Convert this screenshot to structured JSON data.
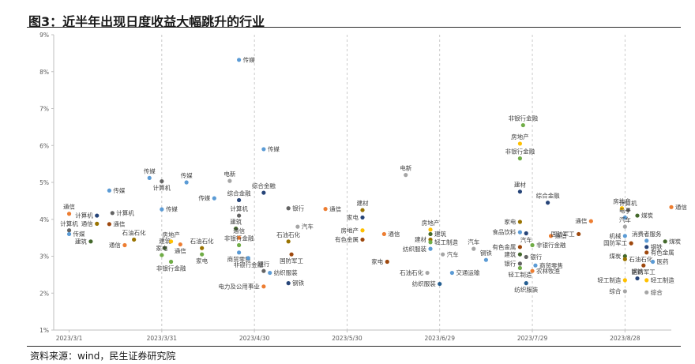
{
  "title": "图3：近半年出现日度收益大幅跳升的行业",
  "source": "资料来源：wind，民生证券研究院",
  "colors": {
    "blue": "#4472c4",
    "orange": "#ed7d31",
    "gray": "#a5a5a5",
    "yellow": "#ffc000",
    "lightblue": "#5b9bd5",
    "green": "#70ad47",
    "navy": "#264478",
    "brown": "#9e480e",
    "darkgray": "#636363",
    "olive": "#997300",
    "steel": "#255e91",
    "darkgreen": "#43682b"
  },
  "chart_data": {
    "type": "scatter",
    "title": "",
    "xlabel": "",
    "ylabel": "",
    "xlim": [
      "2023-02-24",
      "2023-09-12"
    ],
    "ylim": [
      1,
      9
    ],
    "x_ticks": [
      "2023/3/1",
      "2023/3/31",
      "2023/4/30",
      "2023/5/30",
      "2023/6/29",
      "2023/7/29",
      "2023/8/28"
    ],
    "x_tick_dates": [
      "2023-03-01",
      "2023-03-31",
      "2023-04-30",
      "2023-05-30",
      "2023-06-29",
      "2023-07-29",
      "2023-08-28"
    ],
    "y_ticks": [
      "1%",
      "2%",
      "3%",
      "4%",
      "5%",
      "6%",
      "7%",
      "8%",
      "9%"
    ],
    "y_tick_values": [
      1,
      2,
      3,
      4,
      5,
      6,
      7,
      8,
      9
    ],
    "grid": {
      "vertical_dashed": true,
      "horizontal": false
    },
    "points": [
      {
        "date": "2023-03-01",
        "value": 4.15,
        "label": "通信",
        "color": "orange",
        "lp": "top"
      },
      {
        "date": "2023-03-01",
        "value": 3.7,
        "label": "计算机",
        "color": "darkgray",
        "lp": "top"
      },
      {
        "date": "2023-03-01",
        "value": 3.6,
        "label": "传媒",
        "color": "lightblue",
        "lp": "right"
      },
      {
        "date": "2023-03-10",
        "value": 4.1,
        "label": "计算机",
        "color": "navy",
        "lp": "left"
      },
      {
        "date": "2023-03-10",
        "value": 3.88,
        "label": "通信",
        "color": "olive",
        "lp": "left"
      },
      {
        "date": "2023-03-08",
        "value": 3.4,
        "label": "建筑",
        "color": "darkgreen",
        "lp": "left"
      },
      {
        "date": "2023-03-14",
        "value": 3.87,
        "label": "通信",
        "color": "brown",
        "lp": "right"
      },
      {
        "date": "2023-03-14",
        "value": 4.78,
        "label": "传媒",
        "color": "lightblue",
        "lp": "right"
      },
      {
        "date": "2023-03-15",
        "value": 4.17,
        "label": "计算机",
        "color": "darkgray",
        "lp": "right"
      },
      {
        "date": "2023-03-19",
        "value": 3.3,
        "label": "通信",
        "color": "orange",
        "lp": "left"
      },
      {
        "date": "2023-03-22",
        "value": 3.45,
        "label": "石油石化",
        "color": "olive",
        "lp": "top"
      },
      {
        "date": "2023-03-27",
        "value": 5.12,
        "label": "传媒",
        "color": "lightblue",
        "lp": "top"
      },
      {
        "date": "2023-03-31",
        "value": 5.03,
        "label": "计算机",
        "color": "darkgray",
        "lp": "bottom"
      },
      {
        "date": "2023-03-31",
        "value": 4.27,
        "label": "传媒",
        "color": "lightblue",
        "lp": "right"
      },
      {
        "date": "2023-04-01",
        "value": 3.22,
        "label": "建筑",
        "color": "darkgreen",
        "lp": "top"
      },
      {
        "date": "2023-03-31",
        "value": 3.03,
        "label": "家电",
        "color": "green",
        "lp": "top"
      },
      {
        "date": "2023-04-03",
        "value": 3.4,
        "label": "房地产",
        "color": "yellow",
        "lp": "top"
      },
      {
        "date": "2023-04-03",
        "value": 2.85,
        "label": "非银行金融",
        "color": "green",
        "lp": "bottom"
      },
      {
        "date": "2023-04-06",
        "value": 3.32,
        "label": "通信",
        "color": "orange",
        "lp": "bottom"
      },
      {
        "date": "2023-04-08",
        "value": 5.0,
        "label": "传媒",
        "color": "lightblue",
        "lp": "top"
      },
      {
        "date": "2023-04-13",
        "value": 3.22,
        "label": "石油石化",
        "color": "olive",
        "lp": "top"
      },
      {
        "date": "2023-04-13",
        "value": 3.05,
        "label": "家电",
        "color": "green",
        "lp": "bottom"
      },
      {
        "date": "2023-04-17",
        "value": 4.57,
        "label": "传媒",
        "color": "lightblue",
        "lp": "left"
      },
      {
        "date": "2023-04-22",
        "value": 5.04,
        "label": "电新",
        "color": "gray",
        "lp": "top"
      },
      {
        "date": "2023-04-25",
        "value": 4.52,
        "label": "综合金融",
        "color": "navy",
        "lp": "top"
      },
      {
        "date": "2023-04-25",
        "value": 4.1,
        "label": "计算机",
        "color": "darkgray",
        "lp": "top"
      },
      {
        "date": "2023-04-24",
        "value": 3.75,
        "label": "建筑",
        "color": "darkgreen",
        "lp": "top"
      },
      {
        "date": "2023-04-25",
        "value": 3.5,
        "label": "通信",
        "color": "orange",
        "lp": "top"
      },
      {
        "date": "2023-04-25",
        "value": 3.3,
        "label": "非银行金融",
        "color": "green",
        "lp": "top"
      },
      {
        "date": "2023-04-25",
        "value": 3.1,
        "label": "商贸零售",
        "color": "lightblue",
        "lp": "bottom"
      },
      {
        "date": "2023-04-28",
        "value": 2.95,
        "label": "非银行金融",
        "color": "lightblue",
        "lp": "bottom"
      },
      {
        "date": "2023-04-25",
        "value": 8.32,
        "label": "传媒",
        "color": "lightblue",
        "lp": "right"
      },
      {
        "date": "2023-05-03",
        "value": 5.9,
        "label": "传媒",
        "color": "lightblue",
        "lp": "right"
      },
      {
        "date": "2023-05-03",
        "value": 4.72,
        "label": "综合金融",
        "color": "navy",
        "lp": "top"
      },
      {
        "date": "2023-05-11",
        "value": 4.3,
        "label": "银行",
        "color": "darkgray",
        "lp": "right"
      },
      {
        "date": "2023-05-11",
        "value": 3.4,
        "label": "石油石化",
        "color": "olive",
        "lp": "top"
      },
      {
        "date": "2023-05-12",
        "value": 3.05,
        "label": "国防军工",
        "color": "brown",
        "lp": "bottom"
      },
      {
        "date": "2023-05-03",
        "value": 2.6,
        "label": "银行",
        "color": "darkgray",
        "lp": "top"
      },
      {
        "date": "2023-05-05",
        "value": 2.55,
        "label": "纺织服装",
        "color": "lightblue",
        "lp": "right"
      },
      {
        "date": "2023-05-03",
        "value": 2.18,
        "label": "电力及公用事业",
        "color": "orange",
        "lp": "left"
      },
      {
        "date": "2023-05-11",
        "value": 2.27,
        "label": "钢铁",
        "color": "navy",
        "lp": "right"
      },
      {
        "date": "2023-05-14",
        "value": 3.8,
        "label": "汽车",
        "color": "gray",
        "lp": "right"
      },
      {
        "date": "2023-05-23",
        "value": 4.28,
        "label": "通信",
        "color": "orange",
        "lp": "right"
      },
      {
        "date": "2023-06-04",
        "value": 4.25,
        "label": "建材",
        "color": "olive",
        "lp": "top"
      },
      {
        "date": "2023-06-04",
        "value": 4.05,
        "label": "家电",
        "color": "navy",
        "lp": "left"
      },
      {
        "date": "2023-06-04",
        "value": 3.7,
        "label": "房地产",
        "color": "yellow",
        "lp": "left"
      },
      {
        "date": "2023-06-04",
        "value": 3.45,
        "label": "有色金属",
        "color": "brown",
        "lp": "left"
      },
      {
        "date": "2023-06-11",
        "value": 3.6,
        "label": "通信",
        "color": "orange",
        "lp": "right"
      },
      {
        "date": "2023-06-12",
        "value": 2.85,
        "label": "家电",
        "color": "brown",
        "lp": "left"
      },
      {
        "date": "2023-06-18",
        "value": 5.2,
        "label": "电新",
        "color": "gray",
        "lp": "top"
      },
      {
        "date": "2023-06-26",
        "value": 3.72,
        "label": "房地产",
        "color": "yellow",
        "lp": "top"
      },
      {
        "date": "2023-06-26",
        "value": 3.6,
        "label": "建筑",
        "color": "darkgreen",
        "lp": "right"
      },
      {
        "date": "2023-06-26",
        "value": 3.45,
        "label": "建材",
        "color": "olive",
        "lp": "left"
      },
      {
        "date": "2023-06-26",
        "value": 3.38,
        "label": "轻工制造",
        "color": "green",
        "lp": "right"
      },
      {
        "date": "2023-06-26",
        "value": 3.2,
        "label": "纺织服装",
        "color": "lightblue",
        "lp": "left"
      },
      {
        "date": "2023-06-30",
        "value": 3.05,
        "label": "汽车",
        "color": "gray",
        "lp": "right"
      },
      {
        "date": "2023-06-25",
        "value": 2.55,
        "label": "石油石化",
        "color": "gray",
        "lp": "left"
      },
      {
        "date": "2023-06-29",
        "value": 2.25,
        "label": "纺织服装",
        "color": "steel",
        "lp": "left"
      },
      {
        "date": "2023-07-03",
        "value": 2.55,
        "label": "交通运输",
        "color": "lightblue",
        "lp": "right"
      },
      {
        "date": "2023-07-10",
        "value": 3.2,
        "label": "汽车",
        "color": "gray",
        "lp": "top"
      },
      {
        "date": "2023-07-14",
        "value": 2.9,
        "label": "钢铁",
        "color": "lightblue",
        "lp": "top"
      },
      {
        "date": "2023-07-26",
        "value": 6.55,
        "label": "非银行金融",
        "color": "green",
        "lp": "top"
      },
      {
        "date": "2023-07-25",
        "value": 6.05,
        "label": "房地产",
        "color": "yellow",
        "lp": "top"
      },
      {
        "date": "2023-07-25",
        "value": 5.65,
        "label": "非银行金融",
        "color": "green",
        "lp": "top"
      },
      {
        "date": "2023-07-25",
        "value": 4.75,
        "label": "建材",
        "color": "navy",
        "lp": "top"
      },
      {
        "date": "2023-08-03",
        "value": 4.45,
        "label": "综合金融",
        "color": "navy",
        "lp": "top"
      },
      {
        "date": "2023-07-25",
        "value": 3.93,
        "label": "家电",
        "color": "olive",
        "lp": "left"
      },
      {
        "date": "2023-07-25",
        "value": 3.65,
        "label": "食品饮料",
        "color": "lightblue",
        "lp": "left"
      },
      {
        "date": "2023-07-27",
        "value": 3.62,
        "label": "汽车",
        "color": "navy",
        "lp": "bottom"
      },
      {
        "date": "2023-07-25",
        "value": 3.25,
        "label": "有色金属",
        "color": "brown",
        "lp": "left"
      },
      {
        "date": "2023-07-25",
        "value": 3.05,
        "label": "建筑",
        "color": "darkgreen",
        "lp": "left"
      },
      {
        "date": "2023-07-25",
        "value": 2.8,
        "label": "银行",
        "color": "darkgray",
        "lp": "left"
      },
      {
        "date": "2023-07-25",
        "value": 2.68,
        "label": "轻工制造",
        "color": "green",
        "lp": "bottom"
      },
      {
        "date": "2023-07-27",
        "value": 2.27,
        "label": "纺织服装",
        "color": "steel",
        "lp": "bottom"
      },
      {
        "date": "2023-07-27",
        "value": 2.98,
        "label": "银行",
        "color": "darkgray",
        "lp": "right"
      },
      {
        "date": "2023-07-30",
        "value": 2.75,
        "label": "商贸零售",
        "color": "lightblue",
        "lp": "right"
      },
      {
        "date": "2023-07-29",
        "value": 2.6,
        "label": "农林牧渔",
        "color": "orange",
        "lp": "right"
      },
      {
        "date": "2023-07-29",
        "value": 3.3,
        "label": "非银行金融",
        "color": "green",
        "lp": "right"
      },
      {
        "date": "2023-08-04",
        "value": 3.55,
        "label": "通信",
        "color": "orange",
        "lp": "right"
      },
      {
        "date": "2023-08-13",
        "value": 3.6,
        "label": "国防军工",
        "color": "brown",
        "lp": "left"
      },
      {
        "date": "2023-08-17",
        "value": 3.95,
        "label": "通信",
        "color": "orange",
        "lp": "left"
      },
      {
        "date": "2023-08-27",
        "value": 4.3,
        "label": "房地产",
        "color": "yellow",
        "lp": "top"
      },
      {
        "date": "2023-08-29",
        "value": 4.25,
        "label": "计算机",
        "color": "darkgray",
        "lp": "top"
      },
      {
        "date": "2023-08-28",
        "value": 4.05,
        "label": "电子",
        "color": "lightblue",
        "lp": "top"
      },
      {
        "date": "2023-09-01",
        "value": 4.1,
        "label": "煤炭",
        "color": "darkgreen",
        "lp": "right"
      },
      {
        "date": "2023-09-12",
        "value": 4.33,
        "label": "通信",
        "color": "orange",
        "lp": "right"
      },
      {
        "date": "2023-08-28",
        "value": 3.8,
        "label": "汽车",
        "color": "gray",
        "lp": "top"
      },
      {
        "date": "2023-08-28",
        "value": 3.55,
        "label": "机械",
        "color": "lightblue",
        "lp": "left"
      },
      {
        "date": "2023-08-30",
        "value": 3.35,
        "label": "国防军工",
        "color": "brown",
        "lp": "left"
      },
      {
        "date": "2023-09-04",
        "value": 3.42,
        "label": "消费者服务",
        "color": "lightblue",
        "lp": "top"
      },
      {
        "date": "2023-09-04",
        "value": 3.25,
        "label": "钢铁",
        "color": "navy",
        "lp": "right"
      },
      {
        "date": "2023-09-04",
        "value": 3.1,
        "label": "有色金属",
        "color": "brown",
        "lp": "right"
      },
      {
        "date": "2023-09-10",
        "value": 3.4,
        "label": "煤炭",
        "color": "darkgreen",
        "lp": "right"
      },
      {
        "date": "2023-08-28",
        "value": 3.0,
        "label": "煤炭",
        "color": "darkgreen",
        "lp": "left"
      },
      {
        "date": "2023-08-28",
        "value": 2.92,
        "label": "石油石化",
        "color": "olive",
        "lp": "right"
      },
      {
        "date": "2023-09-06",
        "value": 2.85,
        "label": "医药",
        "color": "lightblue",
        "lp": "right"
      },
      {
        "date": "2023-09-03",
        "value": 2.75,
        "label": "国防军工",
        "color": "brown",
        "lp": "bottom"
      },
      {
        "date": "2023-08-28",
        "value": 2.35,
        "label": "轻工制造",
        "color": "yellow",
        "lp": "left"
      },
      {
        "date": "2023-09-01",
        "value": 2.4,
        "label": "钢铁",
        "color": "navy",
        "lp": "top"
      },
      {
        "date": "2023-09-04",
        "value": 2.35,
        "label": "轻工制造",
        "color": "yellow",
        "lp": "right"
      },
      {
        "date": "2023-08-28",
        "value": 2.05,
        "label": "综合",
        "color": "gray",
        "lp": "left"
      },
      {
        "date": "2023-09-04",
        "value": 2.02,
        "label": "综合",
        "color": "gray",
        "lp": "right"
      }
    ]
  }
}
